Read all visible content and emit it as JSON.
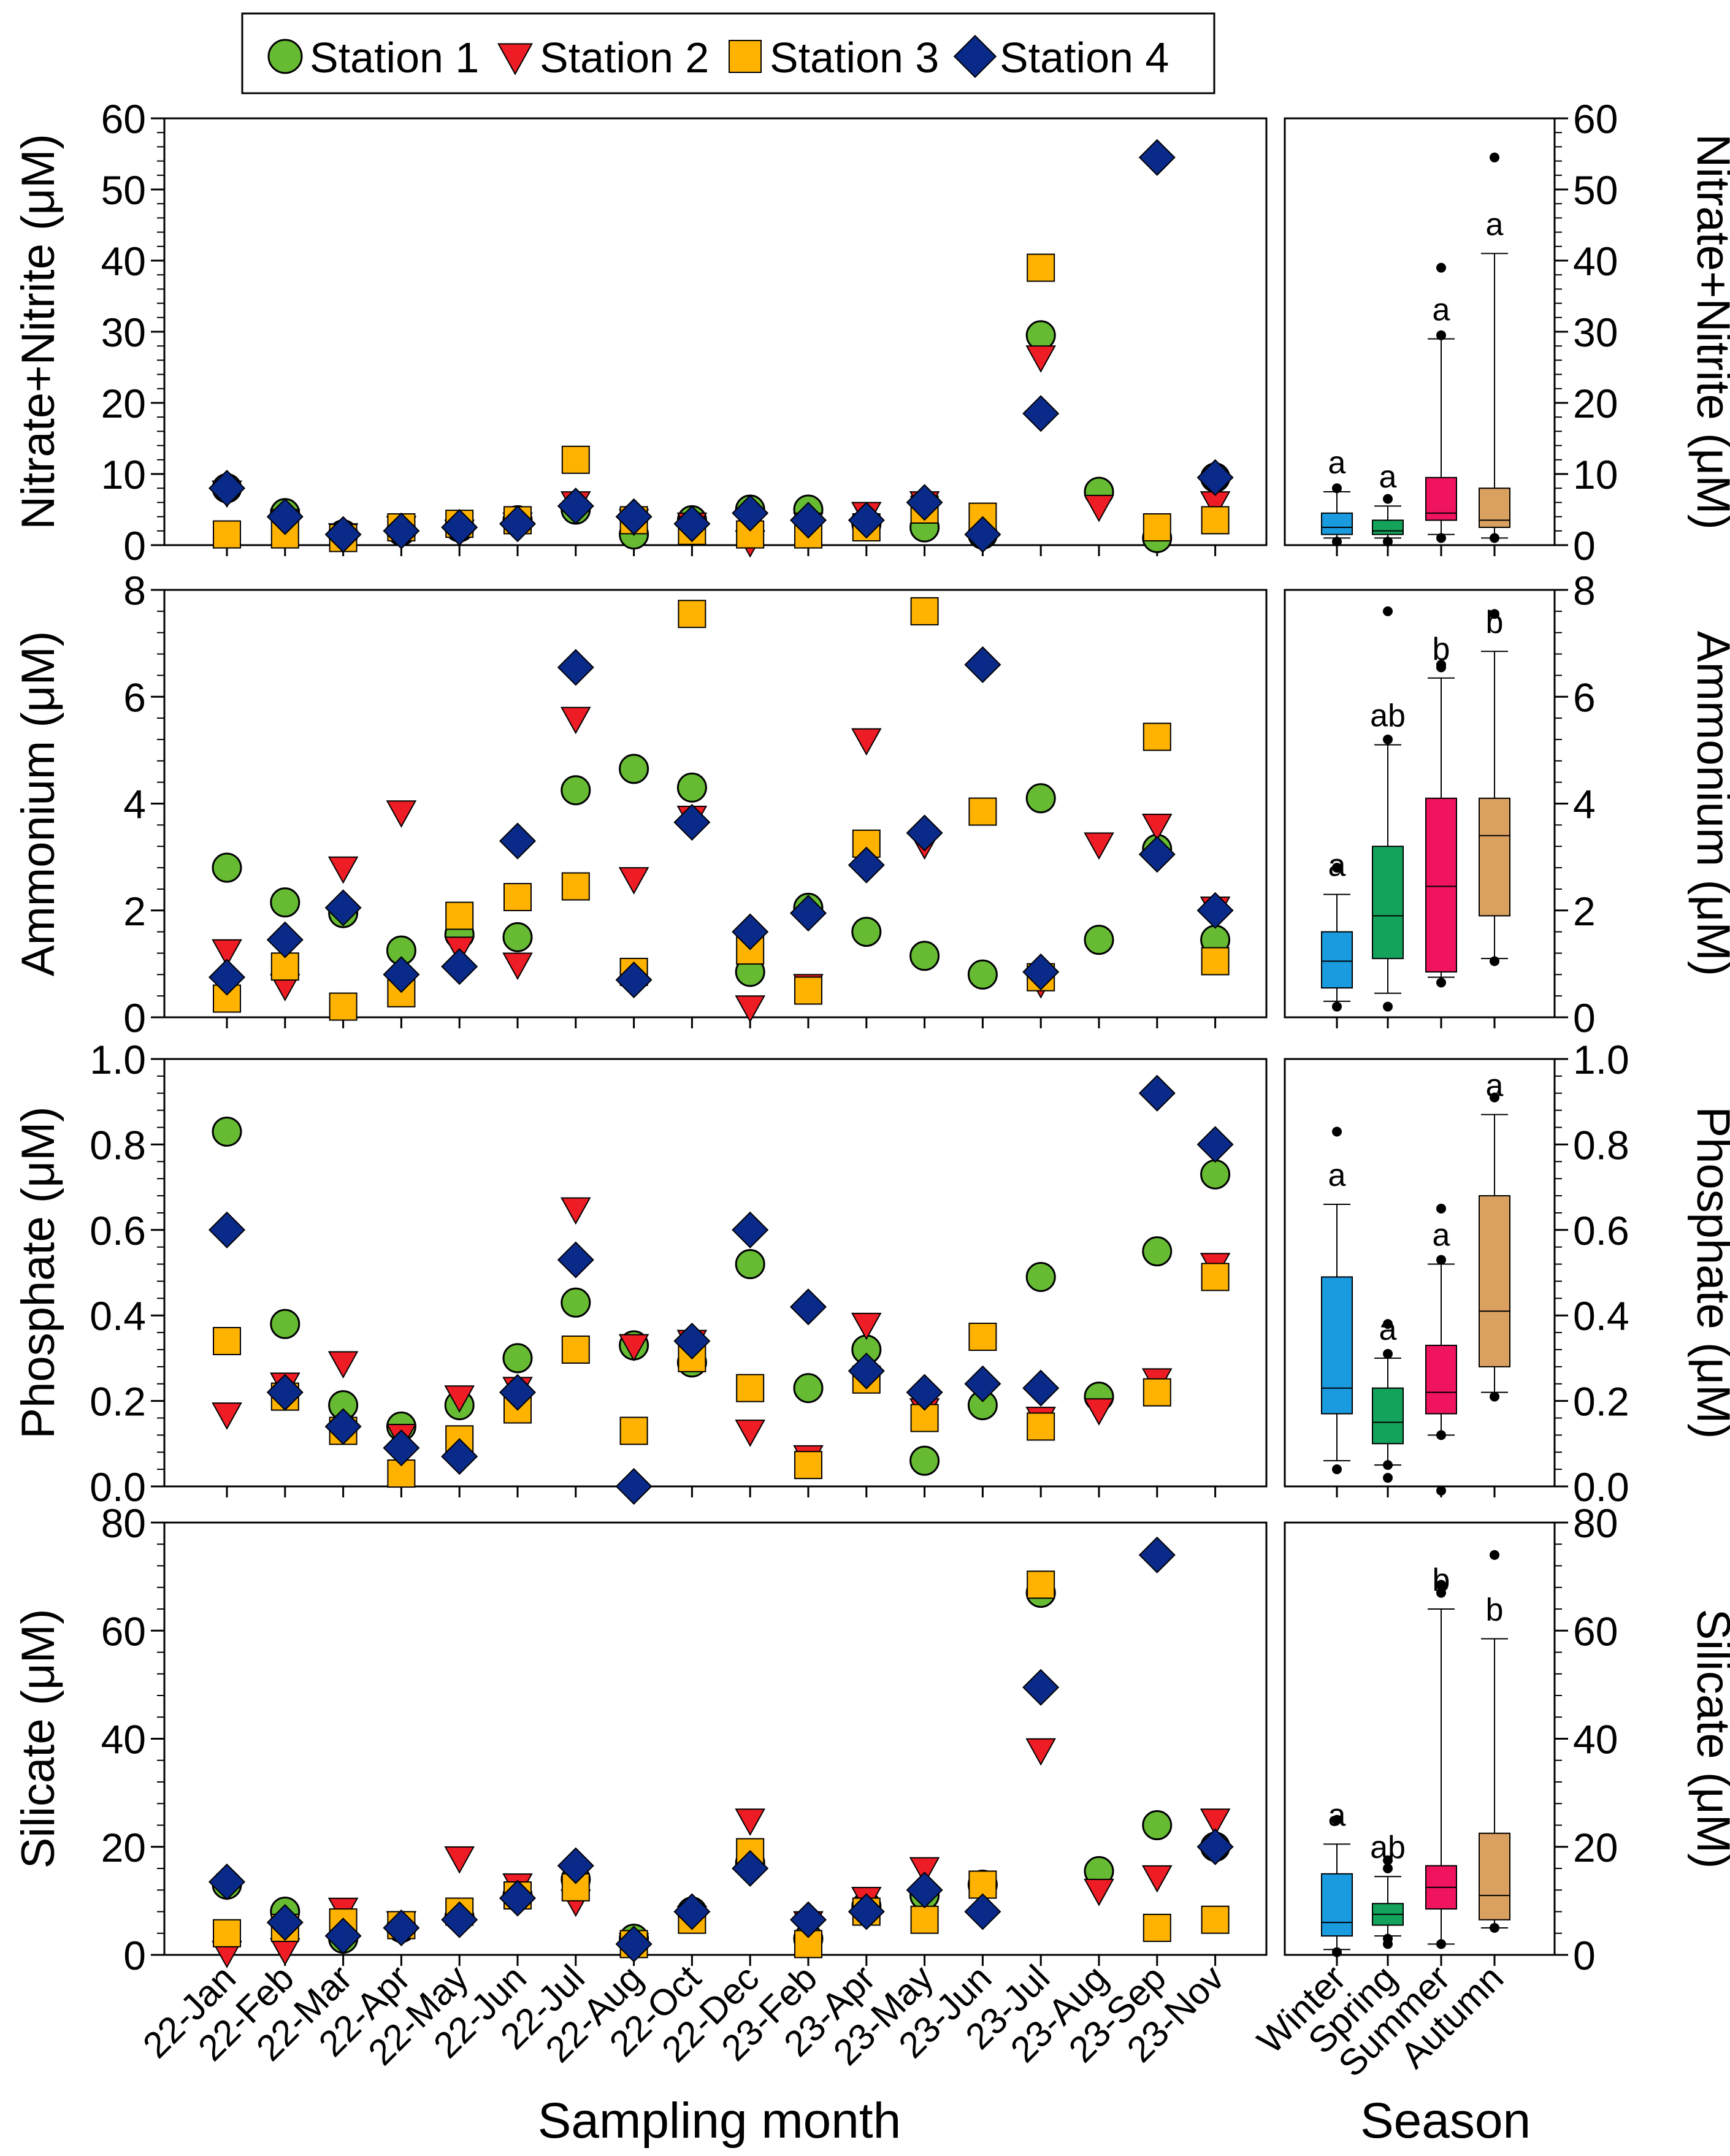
{
  "legend": {
    "entries": [
      {
        "name": "Station 1",
        "shape": "circle",
        "color": "#66bb33"
      },
      {
        "name": "Station 2",
        "shape": "triangle-down",
        "color": "#ee1c24"
      },
      {
        "name": "Station 3",
        "shape": "square",
        "color": "#ffb300"
      },
      {
        "name": "Station 4",
        "shape": "diamond",
        "color": "#0a2a8a"
      }
    ]
  },
  "x_axis_label": "Sampling month",
  "season_axis_label": "Season",
  "season_colors": [
    "#1a9be0",
    "#14a35a",
    "#f0135f",
    "#d9a060"
  ],
  "chart_data": [
    {
      "type": "scatter",
      "title": "",
      "ylabel": "Nitrate+Nitrite (μM)",
      "xlabel": "Sampling month",
      "ylim": [
        0,
        60
      ],
      "yticks": [
        0,
        10,
        20,
        30,
        40,
        50,
        60
      ],
      "yticks_labels": [
        "0",
        "10",
        "20",
        "30",
        "40",
        "50",
        "60"
      ],
      "categories": [
        "22-Jan",
        "22-Feb",
        "22-Mar",
        "22-Apr",
        "22-May",
        "22-Jun",
        "22-Jul",
        "22-Aug",
        "22-Oct",
        "22-Dec",
        "23-Feb",
        "23-Apr",
        "23-May",
        "23-Jun",
        "23-Jul",
        "23-Aug",
        "23-Sep",
        "23-Nov"
      ],
      "series": [
        {
          "name": "Station 1",
          "values": [
            8,
            4.5,
            1.5,
            2,
            2.5,
            3.5,
            5,
            1.5,
            3.5,
            5,
            5,
            3,
            2.5,
            1.5,
            29.5,
            7.5,
            1,
            9.5
          ]
        },
        {
          "name": "Station 2",
          "values": [
            7.5,
            3.5,
            1.5,
            2.5,
            2,
            3,
            6,
            3.5,
            3,
            0.5,
            3,
            4.5,
            6,
            null,
            26.5,
            5.5,
            null,
            6
          ]
        },
        {
          "name": "Station 3",
          "values": [
            1.5,
            1.5,
            1,
            2.5,
            3,
            3.5,
            12,
            3.5,
            2,
            1.5,
            1.5,
            2.5,
            5,
            4,
            39,
            null,
            2.5,
            3.5
          ]
        },
        {
          "name": "Station 4",
          "values": [
            8,
            4,
            1.5,
            2,
            2.5,
            3,
            5.5,
            4,
            3,
            4.5,
            3.5,
            3.5,
            6,
            1.5,
            18.5,
            null,
            54.5,
            9.5
          ]
        }
      ],
      "seasonal": {
        "categories": [
          "Winter",
          "Spring",
          "Summer",
          "Autumn"
        ],
        "ylim": [
          0,
          60
        ],
        "yticks": [
          0,
          10,
          20,
          30,
          40,
          50,
          60
        ],
        "yticks_labels": [
          "0",
          "10",
          "20",
          "30",
          "40",
          "50",
          "60"
        ],
        "ylabel": "Nitrate+Nitrite (μM)",
        "boxes": [
          {
            "whislo": 1,
            "q1": 1.5,
            "med": 2.5,
            "q3": 4.5,
            "whishi": 7.5,
            "fliers": [
              0.5,
              8
            ],
            "letter": "a"
          },
          {
            "whislo": 1,
            "q1": 1.5,
            "med": 2,
            "q3": 3.5,
            "whishi": 5.5,
            "fliers": [
              0.5,
              6.5
            ],
            "letter": "a"
          },
          {
            "whislo": 1.5,
            "q1": 3.5,
            "med": 4.5,
            "q3": 9.5,
            "whishi": 29,
            "fliers": [
              1,
              29.5,
              39
            ],
            "letter": "a"
          },
          {
            "whislo": 1,
            "q1": 2.5,
            "med": 3.5,
            "q3": 8,
            "whishi": 41,
            "fliers": [
              1,
              54.5
            ],
            "letter": "a"
          }
        ]
      }
    },
    {
      "type": "scatter",
      "title": "",
      "ylabel": "Ammonium (μM)",
      "xlabel": "Sampling month",
      "ylim": [
        0,
        8
      ],
      "yticks": [
        0,
        2,
        4,
        6,
        8
      ],
      "yticks_labels": [
        "0",
        "2",
        "4",
        "6",
        "8"
      ],
      "categories": [
        "22-Jan",
        "22-Feb",
        "22-Mar",
        "22-Apr",
        "22-May",
        "22-Jun",
        "22-Jul",
        "22-Aug",
        "22-Oct",
        "22-Dec",
        "23-Feb",
        "23-Apr",
        "23-May",
        "23-Jun",
        "23-Jul",
        "23-Aug",
        "23-Sep",
        "23-Nov"
      ],
      "series": [
        {
          "name": "Station 1",
          "values": [
            2.8,
            2.15,
            1.95,
            1.25,
            1.55,
            1.5,
            4.25,
            4.65,
            4.3,
            0.85,
            2.05,
            1.6,
            1.15,
            0.8,
            4.1,
            1.45,
            3.15,
            1.45
          ]
        },
        {
          "name": "Station 2",
          "values": [
            1.25,
            0.6,
            2.8,
            3.85,
            1.3,
            1.0,
            5.6,
            2.6,
            3.75,
            0.2,
            0.6,
            5.2,
            3.25,
            null,
            0.65,
            3.25,
            3.6,
            2.05
          ]
        },
        {
          "name": "Station 3",
          "values": [
            0.35,
            0.95,
            0.2,
            0.45,
            1.9,
            2.25,
            2.45,
            0.85,
            7.55,
            1.25,
            0.5,
            3.25,
            7.6,
            3.85,
            0.75,
            null,
            5.25,
            1.05
          ]
        },
        {
          "name": "Station 4",
          "values": [
            0.75,
            1.45,
            2.05,
            0.8,
            0.95,
            3.3,
            6.55,
            0.7,
            3.65,
            1.6,
            1.95,
            2.85,
            3.45,
            6.6,
            0.85,
            null,
            3.05,
            2.0
          ]
        }
      ],
      "seasonal": {
        "categories": [
          "Winter",
          "Spring",
          "Summer",
          "Autumn"
        ],
        "ylim": [
          0,
          8
        ],
        "yticks": [
          0,
          2,
          4,
          6,
          8
        ],
        "yticks_labels": [
          "0",
          "2",
          "4",
          "6",
          "8"
        ],
        "ylabel": "Ammonium (μM)",
        "boxes": [
          {
            "whislo": 0.3,
            "q1": 0.55,
            "med": 1.05,
            "q3": 1.6,
            "whishi": 2.3,
            "fliers": [
              0.2,
              2.8
            ],
            "letter": "a"
          },
          {
            "whislo": 0.45,
            "q1": 1.1,
            "med": 1.9,
            "q3": 3.2,
            "whishi": 5.1,
            "fliers": [
              0.2,
              5.2,
              7.6
            ],
            "letter": "ab"
          },
          {
            "whislo": 0.75,
            "q1": 0.85,
            "med": 2.45,
            "q3": 4.1,
            "whishi": 6.35,
            "fliers": [
              0.65,
              6.55,
              6.6
            ],
            "letter": "b"
          },
          {
            "whislo": 1.1,
            "q1": 1.9,
            "med": 3.4,
            "q3": 4.1,
            "whishi": 6.85,
            "fliers": [
              1.05,
              7.55
            ],
            "letter": "b"
          }
        ]
      }
    },
    {
      "type": "scatter",
      "title": "",
      "ylabel": "Phosphate (μM)",
      "xlabel": "Sampling month",
      "ylim": [
        0,
        1.0
      ],
      "yticks": [
        0,
        0.2,
        0.4,
        0.6,
        0.8,
        1.0
      ],
      "yticks_labels": [
        "0.0",
        "0.2",
        "0.4",
        "0.6",
        "0.8",
        "1.0"
      ],
      "categories": [
        "22-Jan",
        "22-Feb",
        "22-Mar",
        "22-Apr",
        "22-May",
        "22-Jun",
        "22-Jul",
        "22-Aug",
        "22-Oct",
        "22-Dec",
        "23-Feb",
        "23-Apr",
        "23-May",
        "23-Jun",
        "23-Jul",
        "23-Aug",
        "23-Sep",
        "23-Nov"
      ],
      "series": [
        {
          "name": "Station 1",
          "values": [
            0.83,
            0.38,
            0.19,
            0.14,
            0.19,
            0.3,
            0.43,
            0.33,
            0.29,
            0.52,
            0.23,
            0.32,
            0.06,
            0.19,
            0.49,
            0.21,
            0.55,
            0.73
          ]
        },
        {
          "name": "Station 2",
          "values": [
            0.17,
            0.24,
            0.29,
            0.12,
            0.21,
            0.23,
            0.65,
            0.33,
            0.34,
            0.13,
            0.07,
            0.38,
            0.18,
            null,
            0.16,
            0.18,
            0.25,
            0.52
          ]
        },
        {
          "name": "Station 3",
          "values": [
            0.34,
            0.21,
            0.13,
            0.03,
            0.11,
            0.18,
            0.32,
            0.13,
            0.3,
            0.23,
            0.05,
            0.25,
            0.16,
            0.35,
            0.14,
            null,
            0.22,
            0.49
          ]
        },
        {
          "name": "Station 4",
          "values": [
            0.6,
            0.22,
            0.14,
            0.09,
            0.07,
            0.22,
            0.53,
            0.0,
            0.34,
            0.6,
            0.42,
            0.27,
            0.22,
            0.24,
            0.23,
            null,
            0.92,
            0.8
          ]
        }
      ],
      "seasonal": {
        "categories": [
          "Winter",
          "Spring",
          "Summer",
          "Autumn"
        ],
        "ylim": [
          0,
          1.0
        ],
        "yticks": [
          0,
          0.2,
          0.4,
          0.6,
          0.8,
          1.0
        ],
        "yticks_labels": [
          "0.0",
          "0.2",
          "0.4",
          "0.6",
          "0.8",
          "1.0"
        ],
        "ylabel": "Phosphate (μM)",
        "boxes": [
          {
            "whislo": 0.06,
            "q1": 0.17,
            "med": 0.23,
            "q3": 0.49,
            "whishi": 0.66,
            "fliers": [
              0.04,
              0.83
            ],
            "letter": "a"
          },
          {
            "whislo": 0.05,
            "q1": 0.1,
            "med": 0.15,
            "q3": 0.23,
            "whishi": 0.3,
            "fliers": [
              0.02,
              0.05,
              0.31,
              0.38
            ],
            "letter": "a"
          },
          {
            "whislo": 0.12,
            "q1": 0.17,
            "med": 0.22,
            "q3": 0.33,
            "whishi": 0.52,
            "fliers": [
              -0.01,
              0.12,
              0.53,
              0.65
            ],
            "letter": "a"
          },
          {
            "whislo": 0.22,
            "q1": 0.28,
            "med": 0.41,
            "q3": 0.68,
            "whishi": 0.87,
            "fliers": [
              0.21,
              0.91
            ],
            "letter": "a"
          }
        ]
      }
    },
    {
      "type": "scatter",
      "title": "",
      "ylabel": "Silicate (μM)",
      "xlabel": "Sampling month",
      "ylim": [
        0,
        80
      ],
      "yticks": [
        0,
        20,
        40,
        60,
        80
      ],
      "yticks_labels": [
        "0",
        "20",
        "40",
        "60",
        "80"
      ],
      "categories": [
        "22-Jan",
        "22-Feb",
        "22-Mar",
        "22-Apr",
        "22-May",
        "22-Jun",
        "22-Jul",
        "22-Aug",
        "22-Oct",
        "22-Dec",
        "23-Feb",
        "23-Apr",
        "23-May",
        "23-Jun",
        "23-Jul",
        "23-Aug",
        "23-Sep",
        "23-Nov"
      ],
      "series": [
        {
          "name": "Station 1",
          "values": [
            13,
            8,
            3,
            5,
            7,
            11,
            14,
            3,
            8,
            17,
            3,
            9,
            11,
            13,
            67,
            15.5,
            24,
            20
          ]
        },
        {
          "name": "Station 2",
          "values": [
            0.5,
            1,
            8.5,
            6,
            18,
            13,
            10,
            2,
            7,
            25,
            6,
            10.5,
            16,
            null,
            38,
            12,
            14.5,
            25
          ]
        },
        {
          "name": "Station 3",
          "values": [
            4,
            5,
            6,
            5.5,
            8,
            11,
            12.5,
            2,
            6.5,
            19,
            2,
            8,
            6.5,
            13,
            68.5,
            null,
            5,
            6.5
          ]
        },
        {
          "name": "Station 4",
          "values": [
            13.5,
            6,
            3.5,
            5,
            6.5,
            10.5,
            16.5,
            2,
            8,
            16,
            6.5,
            8,
            12,
            8,
            49.5,
            null,
            74,
            20
          ]
        }
      ],
      "seasonal": {
        "categories": [
          "Winter",
          "Spring",
          "Summer",
          "Autumn"
        ],
        "ylim": [
          0,
          80
        ],
        "yticks": [
          0,
          20,
          40,
          60,
          80
        ],
        "yticks_labels": [
          "0",
          "20",
          "40",
          "60",
          "80"
        ],
        "ylabel": "Silicate (μM)",
        "boxes": [
          {
            "whislo": 1,
            "q1": 3.5,
            "med": 6,
            "q3": 15,
            "whishi": 20.5,
            "fliers": [
              0.5,
              25
            ],
            "letter": "a"
          },
          {
            "whislo": 3.5,
            "q1": 5.5,
            "med": 7.5,
            "q3": 9.5,
            "whishi": 14.5,
            "fliers": [
              2,
              3,
              16,
              17.5
            ],
            "letter": "ab"
          },
          {
            "whislo": 2,
            "q1": 8.5,
            "med": 12.5,
            "q3": 16.5,
            "whishi": 64,
            "fliers": [
              2,
              67,
              68.5
            ],
            "letter": "b"
          },
          {
            "whislo": 5,
            "q1": 6.5,
            "med": 11,
            "q3": 22.5,
            "whishi": 58.5,
            "fliers": [
              5,
              74
            ],
            "letter": "b"
          }
        ]
      }
    }
  ]
}
